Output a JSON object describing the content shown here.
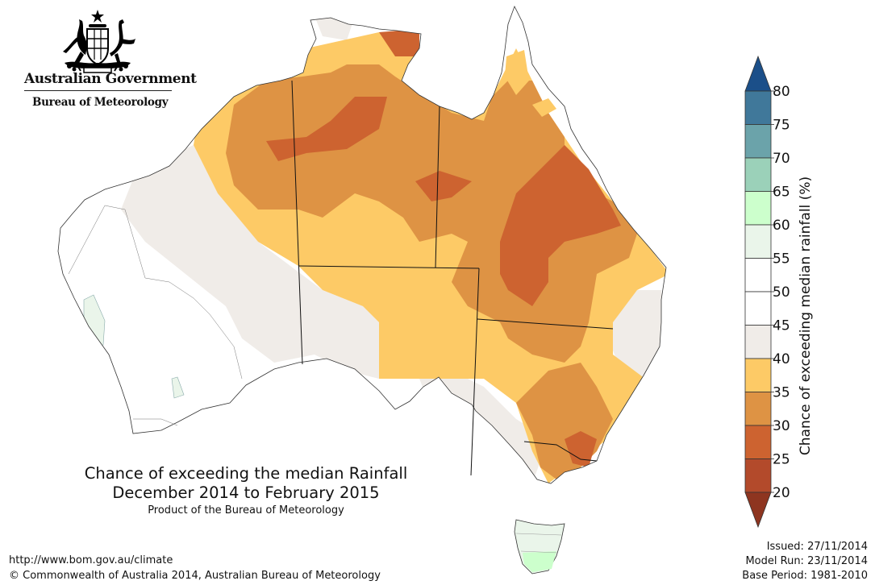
{
  "header": {
    "government": "Australian Government",
    "bureau": "Bureau of Meteorology"
  },
  "title": {
    "line1": "Chance of exceeding the median Rainfall",
    "line2": "December 2014 to February 2015",
    "product": "Product of the Bureau of Meteorology"
  },
  "footer": {
    "url": "http://www.bom.gov.au/climate",
    "copyright": "© Commonwealth of Australia 2014, Australian Bureau of Meteorology"
  },
  "meta": {
    "issued": "Issued: 27/11/2014",
    "model_run": "Model Run: 23/11/2014",
    "base_period": "Base Period: 1981-2010"
  },
  "legend": {
    "label": "Chance of exceeding median rainfall (%)",
    "ticks": [
      "20",
      "25",
      "30",
      "35",
      "40",
      "45",
      "50",
      "55",
      "60",
      "65",
      "70",
      "75",
      "80"
    ],
    "bands": [
      {
        "from": 20,
        "to": 25,
        "color": "#b34a2b"
      },
      {
        "from": 25,
        "to": 30,
        "color": "#cd6330"
      },
      {
        "from": 30,
        "to": 35,
        "color": "#de9344"
      },
      {
        "from": 35,
        "to": 40,
        "color": "#fdca66"
      },
      {
        "from": 40,
        "to": 45,
        "color": "#f0ece8"
      },
      {
        "from": 45,
        "to": 50,
        "color": "#ffffff"
      },
      {
        "from": 50,
        "to": 55,
        "color": "#ffffff"
      },
      {
        "from": 55,
        "to": 60,
        "color": "#eaf5ea"
      },
      {
        "from": 60,
        "to": 65,
        "color": "#ccffcc"
      },
      {
        "from": 65,
        "to": 70,
        "color": "#9bd1b9"
      },
      {
        "from": 70,
        "to": 75,
        "color": "#6ba3aa"
      },
      {
        "from": 75,
        "to": 80,
        "color": "#40789a"
      }
    ],
    "below_color": "#8e3520",
    "above_color": "#1b4f89"
  }
}
